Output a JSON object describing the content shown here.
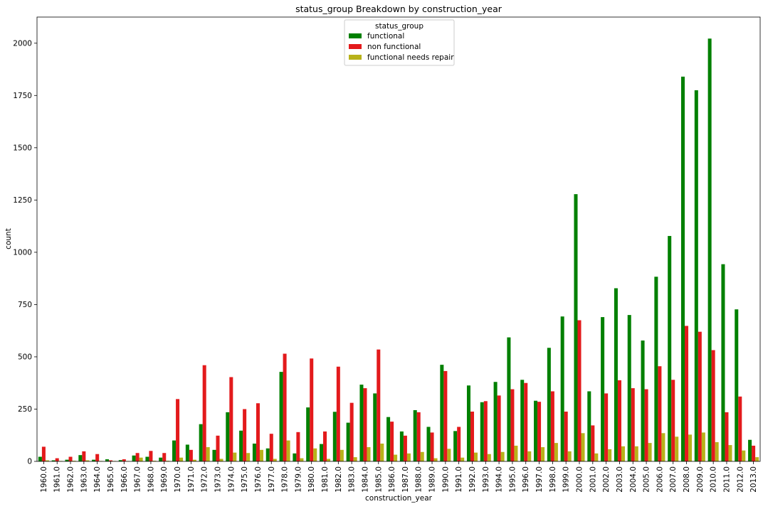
{
  "chart_data": {
    "type": "bar",
    "title": "status_group Breakdown by construction_year",
    "xlabel": "construction_year",
    "ylabel": "count",
    "ylim": [
      0,
      2125
    ],
    "yticks": [
      0,
      250,
      500,
      750,
      1000,
      1250,
      1500,
      1750,
      2000
    ],
    "grid": false,
    "legend": {
      "title": "status_group",
      "position": "top-center"
    },
    "categories": [
      "1960.0",
      "1961.0",
      "1962.0",
      "1963.0",
      "1964.0",
      "1965.0",
      "1966.0",
      "1967.0",
      "1968.0",
      "1969.0",
      "1970.0",
      "1971.0",
      "1972.0",
      "1973.0",
      "1974.0",
      "1975.0",
      "1976.0",
      "1977.0",
      "1978.0",
      "1979.0",
      "1980.0",
      "1981.0",
      "1982.0",
      "1983.0",
      "1984.0",
      "1985.0",
      "1986.0",
      "1987.0",
      "1988.0",
      "1989.0",
      "1990.0",
      "1991.0",
      "1992.0",
      "1993.0",
      "1994.0",
      "1995.0",
      "1996.0",
      "1997.0",
      "1998.0",
      "1999.0",
      "2000.0",
      "2001.0",
      "2002.0",
      "2003.0",
      "2004.0",
      "2005.0",
      "2006.0",
      "2007.0",
      "2008.0",
      "2009.0",
      "2010.0",
      "2011.0",
      "2012.0",
      "2013.0"
    ],
    "series": [
      {
        "name": "functional",
        "color": "#008000",
        "values": [
          22,
          5,
          8,
          30,
          8,
          10,
          6,
          28,
          22,
          18,
          100,
          80,
          178,
          55,
          235,
          147,
          85,
          62,
          428,
          38,
          258,
          83,
          237,
          185,
          367,
          325,
          212,
          143,
          245,
          165,
          462,
          145,
          363,
          283,
          380,
          593,
          390,
          290,
          543,
          693,
          1278,
          335,
          690,
          828,
          700,
          578,
          883,
          1078,
          1840,
          1775,
          2022,
          943,
          727,
          103
        ]
      },
      {
        "name": "non functional",
        "color": "#e31a1c",
        "values": [
          70,
          15,
          22,
          48,
          35,
          5,
          10,
          40,
          50,
          40,
          298,
          55,
          460,
          123,
          403,
          250,
          278,
          132,
          515,
          140,
          492,
          143,
          453,
          280,
          350,
          535,
          190,
          123,
          235,
          138,
          432,
          165,
          238,
          288,
          315,
          345,
          375,
          285,
          335,
          238,
          675,
          172,
          325,
          388,
          350,
          345,
          455,
          390,
          648,
          620,
          532,
          235,
          310,
          75
        ]
      },
      {
        "name": "functional needs repair",
        "color": "#b8b21a",
        "values": [
          5,
          2,
          3,
          5,
          2,
          2,
          2,
          18,
          3,
          3,
          18,
          8,
          68,
          12,
          42,
          40,
          55,
          12,
          100,
          15,
          62,
          12,
          55,
          20,
          68,
          85,
          32,
          38,
          45,
          15,
          60,
          18,
          42,
          35,
          45,
          75,
          48,
          68,
          88,
          48,
          135,
          38,
          58,
          72,
          72,
          88,
          135,
          118,
          128,
          138,
          92,
          78,
          52,
          20
        ]
      }
    ]
  }
}
